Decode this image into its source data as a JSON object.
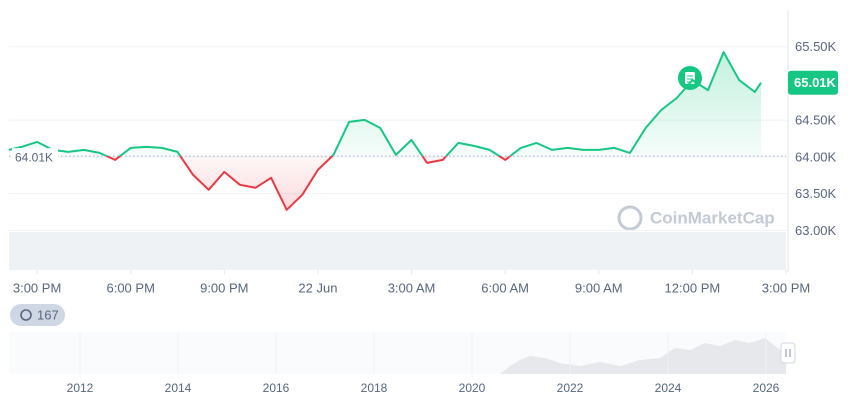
{
  "chart_data": {
    "type": "line",
    "x": [
      -0.9,
      -0.5,
      0,
      0.5,
      1,
      1.5,
      2,
      2.5,
      3,
      3.5,
      4,
      4.5,
      5,
      5.5,
      6,
      6.5,
      7,
      7.5,
      8,
      8.5,
      9,
      9.5,
      10,
      10.5,
      11,
      11.5,
      12,
      12.5,
      13,
      13.5,
      14,
      14.5,
      15,
      15.5,
      16,
      16.5,
      17,
      17.5,
      18,
      18.5,
      19,
      19.5,
      20,
      20.5,
      21,
      21.5,
      22,
      22.5,
      23,
      23.2
    ],
    "values": [
      64095,
      64136,
      64204,
      64095,
      64068,
      64095,
      64054,
      63959,
      64122,
      64136,
      64122,
      64068,
      63755,
      63552,
      63796,
      63620,
      63579,
      63715,
      63280,
      63484,
      63823,
      64027,
      64476,
      64503,
      64394,
      64027,
      64231,
      63918,
      63959,
      64190,
      64150,
      64095,
      63959,
      64122,
      64190,
      64095,
      64122,
      64095,
      64095,
      64122,
      64054,
      64394,
      64639,
      64802,
      65046,
      64910,
      65427,
      65046,
      64883,
      65010
    ],
    "color_up": "#16c784",
    "color_down": "#ea3943",
    "baseline": {
      "value": 64010,
      "label": "64.01K"
    },
    "current_price": {
      "value": 65010,
      "label": "65.01K"
    },
    "xlim": [
      -0.9,
      24
    ],
    "xticks": [
      {
        "value": 0,
        "label": "3:00 PM"
      },
      {
        "value": 3,
        "label": "6:00 PM"
      },
      {
        "value": 6,
        "label": "9:00 PM"
      },
      {
        "value": 9,
        "label": "22 Jun"
      },
      {
        "value": 12,
        "label": "3:00 AM"
      },
      {
        "value": 15,
        "label": "6:00 AM"
      },
      {
        "value": 18,
        "label": "9:00 AM"
      },
      {
        "value": 21,
        "label": "12:00 PM"
      },
      {
        "value": 24,
        "label": "3:00 PM"
      }
    ],
    "ylim": [
      62460,
      66000
    ],
    "yticks": [
      {
        "value": 63000,
        "label": "63.00K"
      },
      {
        "value": 63500,
        "label": "63.50K"
      },
      {
        "value": 64000,
        "label": "64.00K"
      },
      {
        "value": 64500,
        "label": "64.50K"
      },
      {
        "value": 65500,
        "label": "65.50K"
      }
    ],
    "grid": true,
    "watermark": "CoinMarketCap",
    "navigator": {
      "badge": "167",
      "ticks": [
        "2012",
        "2014",
        "2016",
        "2018",
        "2020",
        "2022",
        "2024",
        "2026"
      ]
    }
  }
}
